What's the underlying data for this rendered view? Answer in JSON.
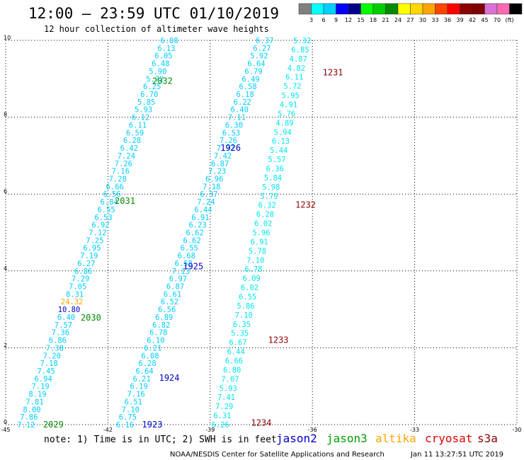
{
  "header": {
    "title": "12:00 – 23:59 UTC 01/10/2019",
    "subtitle": "12 hour collection of altimeter wave heights"
  },
  "legend": {
    "colors": [
      "#808080",
      "#00ffff",
      "#00cfff",
      "#0000ff",
      "#00008b",
      "#00ff00",
      "#00cd00",
      "#008b00",
      "#ffff00",
      "#ffd700",
      "#ffa500",
      "#ff4500",
      "#ff0000",
      "#8b0000",
      "#800000",
      "#da70d6",
      "#ff69b4",
      "#000000"
    ],
    "labels": [
      "3",
      "6",
      "9",
      "12",
      "15",
      "18",
      "21",
      "24",
      "27",
      "30",
      "33",
      "36",
      "39",
      "42",
      "45",
      "70",
      "(ft)"
    ]
  },
  "footer": {
    "note": "note:  1) Time is in UTC;  2) SWH is in feet",
    "satellites": [
      {
        "name": "jason2",
        "color": "#0000c8"
      },
      {
        "name": "jason3",
        "color": "#00a000"
      },
      {
        "name": "altika",
        "color": "#ffa500"
      },
      {
        "name": "cryosat",
        "color": "#e00000"
      },
      {
        "name": "s3a",
        "color": "#8b0000"
      }
    ],
    "credit": "NOAA/NESDIS Center for Satellite Applications and Research",
    "timestamp": "Jan 11 13:27:51 UTC 2019"
  },
  "chart_data": {
    "type": "scatter",
    "title": "12:00 – 23:59 UTC 01/10/2019",
    "subtitle": "12 hour collection of altimeter wave heights",
    "xlim": [
      -45,
      -30
    ],
    "ylim": [
      0,
      10
    ],
    "x_ticks": [
      "-45",
      "-42",
      "-39",
      "-36",
      "-33",
      "-30"
    ],
    "y_ticks": [
      "0",
      "2",
      "4",
      "6",
      "8",
      "10"
    ],
    "grid": true,
    "units": "ft",
    "tracks": [
      {
        "satellite": "jason3",
        "color": "#00ccff",
        "x0": -44.4,
        "y0": 0.0,
        "x1": -40.2,
        "y1": 10.0,
        "values": [
          "7.12",
          "7.86",
          "8.00",
          "7.81",
          "8.19",
          "7.19",
          "6.94",
          "7.45",
          "7.18",
          "7.20",
          "7.38",
          "6.86",
          "7.36",
          "7.57",
          "6.40",
          "10.80",
          "24.32",
          "8.31",
          "7.05",
          "7.29",
          "6.86",
          "6.27",
          "7.19",
          "6.95",
          "7.25",
          "7.12",
          "6.92",
          "6.53",
          "6.55",
          "6.84",
          "6.56",
          "6.66",
          "7.28",
          "7.16",
          "7.26",
          "7.24",
          "6.42",
          "6.28",
          "6.59",
          "6.11",
          "6.12",
          "5.93",
          "5.85",
          "6.70",
          "6.25",
          "5.72",
          "5.90",
          "6.48",
          "6.05",
          "6.13",
          "6.08"
        ],
        "value_colors": {
          "15": "#0000c8",
          "16": "#ffa500"
        }
      },
      {
        "satellite": "jason2",
        "color": "#00ccff",
        "x0": -41.5,
        "y0": 0.0,
        "x1": -37.4,
        "y1": 10.0,
        "values": [
          "6.16",
          "6.75",
          "7.10",
          "6.51",
          "7.16",
          "6.19",
          "6.21",
          "6.64",
          "6.28",
          "6.08",
          "6.21",
          "6.10",
          "6.78",
          "6.82",
          "6.89",
          "6.56",
          "6.52",
          "6.61",
          "6.87",
          "6.97",
          "7.13",
          "6.58",
          "6.68",
          "6.55",
          "6.62",
          "6.62",
          "6.23",
          "6.91",
          "6.44",
          "7.24",
          "6.37",
          "7.18",
          "6.96",
          "7.23",
          "6.87",
          "7.42",
          "7.92",
          "7.26",
          "6.53",
          "6.30",
          "7.11",
          "6.40",
          "6.22",
          "6.18",
          "6.58",
          "6.49",
          "6.79",
          "6.64",
          "5.92",
          "6.27",
          "6.37"
        ]
      },
      {
        "satellite": "s3a",
        "color": "#00e5ee",
        "x0": -38.7,
        "y0": 0.0,
        "x1": -36.3,
        "y1": 10.0,
        "values": [
          "6.26",
          "6.31",
          "7.29",
          "7.41",
          "5.93",
          "7.07",
          "6.80",
          "6.66",
          "6.44",
          "6.67",
          "5.35",
          "6.35",
          "7.10",
          "5.86",
          "6.55",
          "6.02",
          "6.09",
          "6.78",
          "7.10",
          "5.78",
          "6.91",
          "5.96",
          "6.02",
          "6.28",
          "6.32",
          "5.79",
          "5.98",
          "5.84",
          "6.36",
          "5.57",
          "5.44",
          "6.13",
          "5.94",
          "4.89",
          "5.76",
          "4.91",
          "5.95",
          "5.72",
          "6.11",
          "4.82",
          "4.87",
          "6.85",
          "5.32"
        ]
      }
    ],
    "pass_labels": [
      {
        "text": "2029",
        "x": -43.9,
        "y": 0.0,
        "color": "#008b00"
      },
      {
        "text": "2030",
        "x": -42.8,
        "y": 2.78,
        "color": "#008b00"
      },
      {
        "text": "2031",
        "x": -41.8,
        "y": 5.82,
        "color": "#008b00"
      },
      {
        "text": "2032",
        "x": -40.7,
        "y": 8.94,
        "color": "#008b00"
      },
      {
        "text": "1923",
        "x": -41.0,
        "y": 0.0,
        "color": "#0000c8"
      },
      {
        "text": "1924",
        "x": -40.5,
        "y": 1.22,
        "color": "#0000c8"
      },
      {
        "text": "1925",
        "x": -39.8,
        "y": 4.12,
        "color": "#0000c8"
      },
      {
        "text": "1926",
        "x": -38.7,
        "y": 7.2,
        "color": "#0000c8"
      },
      {
        "text": "1234",
        "x": -37.8,
        "y": 0.05,
        "color": "#8b0000"
      },
      {
        "text": "1233",
        "x": -37.3,
        "y": 2.2,
        "color": "#8b0000"
      },
      {
        "text": "1232",
        "x": -36.5,
        "y": 5.72,
        "color": "#8b0000"
      },
      {
        "text": "1231",
        "x": -35.7,
        "y": 9.16,
        "color": "#8b0000"
      }
    ]
  }
}
